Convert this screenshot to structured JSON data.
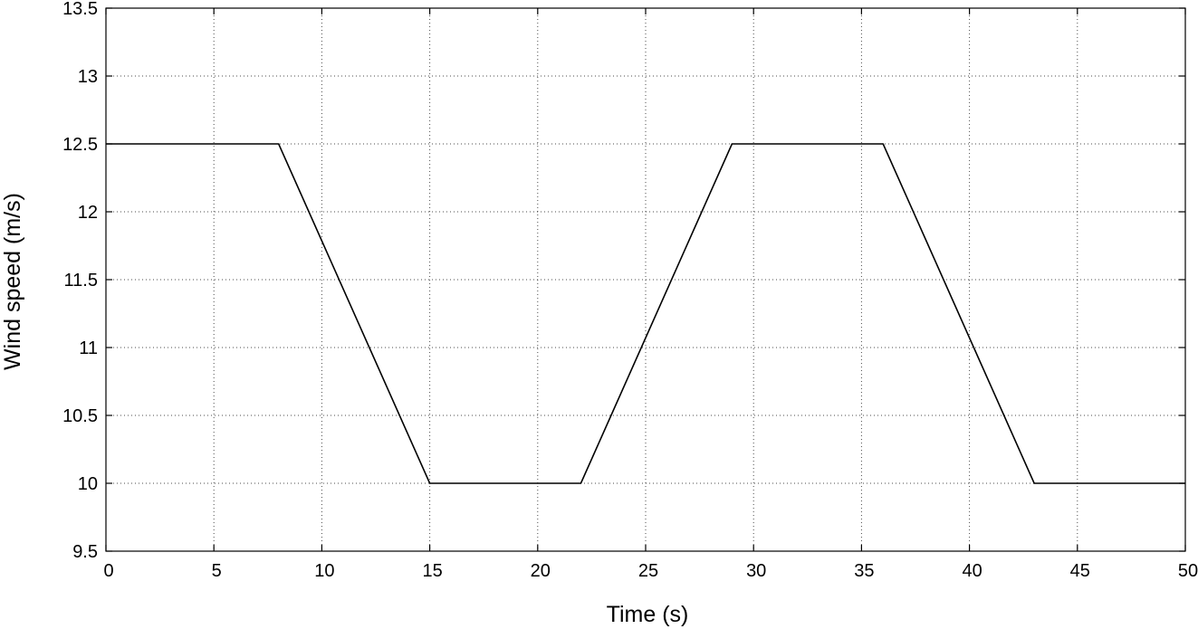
{
  "chart_data": {
    "type": "line",
    "title": "",
    "xlabel": "Time (s)",
    "ylabel": "Wind speed (m/s)",
    "xlim": [
      0,
      50
    ],
    "ylim": [
      9.5,
      13.5
    ],
    "xticks": [
      0,
      5,
      10,
      15,
      20,
      25,
      30,
      35,
      40,
      45,
      50
    ],
    "yticks": [
      9.5,
      10,
      10.5,
      11,
      11.5,
      12,
      12.5,
      13,
      13.5
    ],
    "xtick_labels": [
      "0",
      "5",
      "10",
      "15",
      "20",
      "25",
      "30",
      "35",
      "40",
      "45",
      "50"
    ],
    "ytick_labels": [
      "9.5",
      "10",
      "10.5",
      "11",
      "11.5",
      "12",
      "12.5",
      "13",
      "13.5"
    ],
    "grid": true,
    "series": [
      {
        "x": [
          0,
          8,
          15,
          22,
          29,
          36,
          43,
          50
        ],
        "y": [
          12.5,
          12.5,
          10,
          10,
          12.5,
          12.5,
          10,
          10
        ],
        "color": "#000000"
      }
    ]
  }
}
